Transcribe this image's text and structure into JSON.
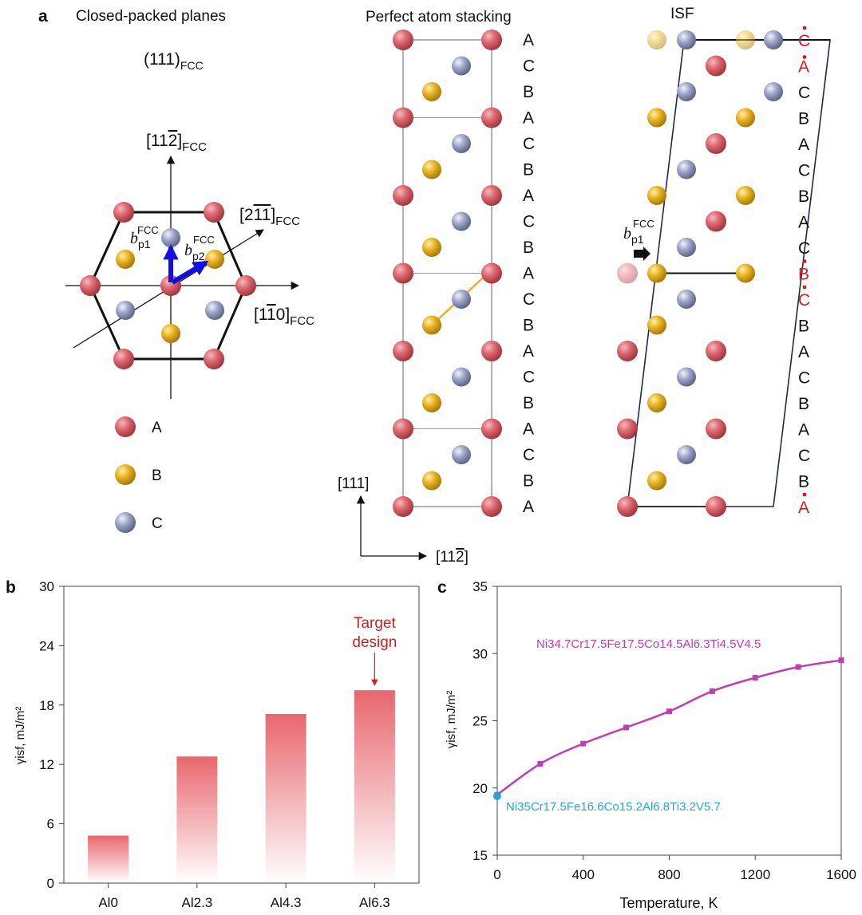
{
  "panel_a": {
    "letter": "a",
    "left": {
      "title": "Closed-packed planes",
      "plane_main": "(111)",
      "plane_sub": "FCC",
      "dir_up": "[11",
      "dir_up_bar": "2",
      "dir_up_close": "]",
      "dir_up_sub": "FCC",
      "dir_diag": "[2",
      "dir_diag_bar": "11",
      "dir_diag_close": "]",
      "dir_diag_sub": "FCC",
      "dir_right": "[1",
      "dir_right_bar": "1",
      "dir_right_close": "0]",
      "dir_right_sub": "FCC",
      "bp1_base": "b",
      "bp1_sub": "p1",
      "bp1_sup": "FCC",
      "bp2_base": "b",
      "bp2_sub": "p2",
      "bp2_sup": "FCC",
      "legend": [
        {
          "label": "A",
          "color": "#d9636b"
        },
        {
          "label": "B",
          "color": "#e8b224"
        },
        {
          "label": "C",
          "color": "#9aa3c4"
        }
      ]
    },
    "middle": {
      "title": "Perfect atom stacking",
      "stack_labels": [
        "A",
        "C",
        "B",
        "A",
        "C",
        "B",
        "A",
        "C",
        "B",
        "A",
        "C",
        "B",
        "A",
        "C",
        "B",
        "A",
        "C",
        "B",
        "A"
      ],
      "axis_up": "[111]",
      "axis_right_main": "[11",
      "axis_right_bar": "2",
      "axis_right_close": "]"
    },
    "right": {
      "title": "ISF",
      "burgers_base": "b",
      "burgers_sub": "p1",
      "burgers_sup": "FCC",
      "stack_labels": [
        {
          "text": "C",
          "red": true
        },
        {
          "text": "A",
          "red": true
        },
        {
          "text": "C",
          "red": false
        },
        {
          "text": "B",
          "red": false
        },
        {
          "text": "A",
          "red": false
        },
        {
          "text": "C",
          "red": false
        },
        {
          "text": "B",
          "red": false
        },
        {
          "text": "A",
          "red": false
        },
        {
          "text": "C",
          "red": false
        },
        {
          "text": "B",
          "red": true
        },
        {
          "text": "C",
          "red": true
        },
        {
          "text": "B",
          "red": false
        },
        {
          "text": "A",
          "red": false
        },
        {
          "text": "C",
          "red": false
        },
        {
          "text": "B",
          "red": false
        },
        {
          "text": "A",
          "red": false
        },
        {
          "text": "C",
          "red": false
        },
        {
          "text": "B",
          "red": false
        },
        {
          "text": "A",
          "red": true
        }
      ]
    }
  },
  "colors": {
    "atom_A": "#d9636b",
    "atom_B": "#e8b224",
    "atom_C": "#9aa3c4",
    "label_red": "#d11f1f",
    "arrow_blue": "#1010e0",
    "bar_top": "#e8676e",
    "series_magenta": "#c23cb4",
    "series_cyan": "#23a7d8"
  },
  "chart_data": [
    {
      "id": "b",
      "letter": "b",
      "type": "bar",
      "categories": [
        "Al0",
        "Al2.3",
        "Al4.3",
        "Al6.3"
      ],
      "values": [
        4.8,
        12.8,
        17.1,
        19.5
      ],
      "ylabel": "γisf, mJ/m²",
      "ylim": [
        0,
        30
      ],
      "yticks": [
        0,
        6,
        12,
        18,
        24,
        30
      ],
      "annotation": {
        "line1": "Target",
        "line2": "design",
        "category": "Al6.3"
      }
    },
    {
      "id": "c",
      "letter": "c",
      "type": "line",
      "x": [
        0,
        200,
        400,
        600,
        800,
        1000,
        1200,
        1400,
        1600
      ],
      "values": [
        19.5,
        21.8,
        23.3,
        24.5,
        25.7,
        27.2,
        28.2,
        29.0,
        29.5
      ],
      "xlabel": "Temperature, K",
      "ylabel": "γisf, mJ/m²",
      "xlim": [
        0,
        1600
      ],
      "ylim": [
        15,
        35
      ],
      "xticks": [
        0,
        400,
        800,
        1200,
        1600
      ],
      "yticks": [
        15,
        20,
        25,
        30,
        35
      ],
      "series_label": "Ni34.7Cr17.5Fe17.5Co14.5Al6.3Ti4.5V4.5",
      "point_label": "Ni35Cr17.5Fe16.6Co15.2Al6.8Ti3.2V5.7",
      "point": {
        "x": 0,
        "y": 19.4
      }
    }
  ]
}
